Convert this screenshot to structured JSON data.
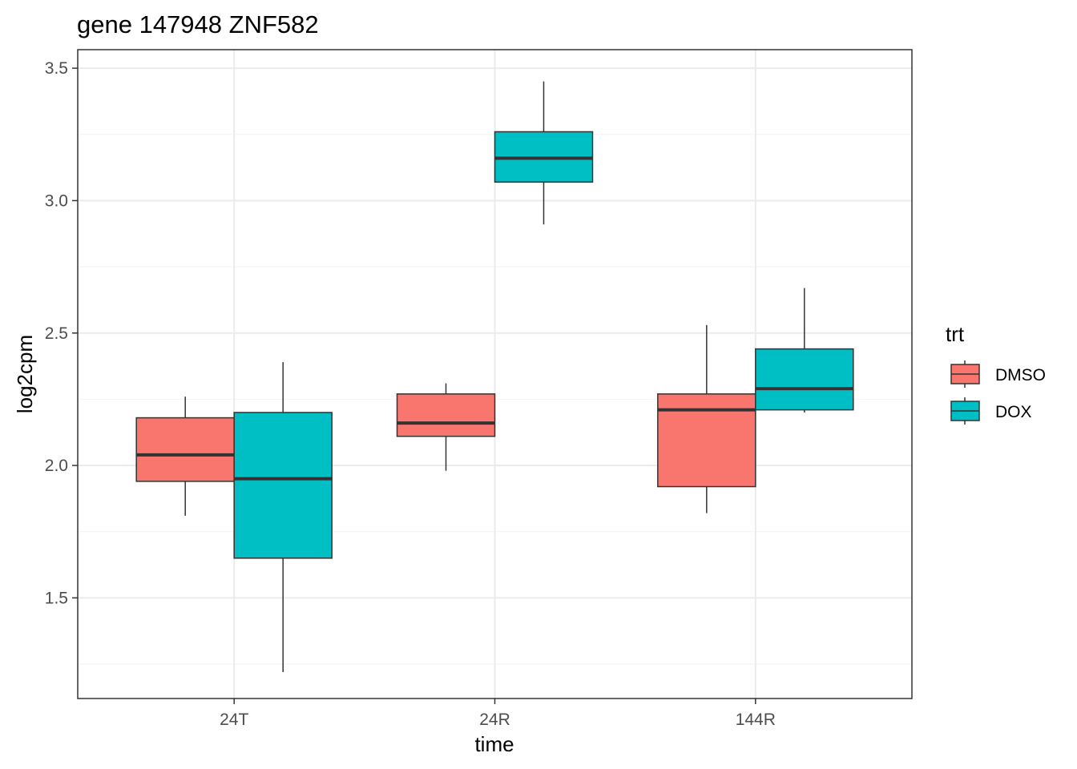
{
  "chart_data": {
    "type": "boxplot",
    "title": "gene 147948 ZNF582",
    "xlabel": "time",
    "ylabel": "log2cpm",
    "categories": [
      "24T",
      "24R",
      "144R"
    ],
    "ylim": [
      1.12,
      3.57
    ],
    "yticks": [
      1.5,
      2.0,
      2.5,
      3.0,
      3.5
    ],
    "yticks_labels": [
      "1.5",
      "2.0",
      "2.5",
      "3.0",
      "3.5"
    ],
    "grid": true,
    "legend": {
      "title": "trt",
      "position": "right",
      "entries": [
        "DMSO",
        "DOX"
      ]
    },
    "colors": {
      "DMSO": "#F8766D",
      "DOX": "#00BFC4"
    },
    "series": [
      {
        "name": "DMSO",
        "boxes": [
          {
            "category": "24T",
            "min": 1.81,
            "q1": 1.94,
            "median": 2.04,
            "q3": 2.18,
            "max": 2.26
          },
          {
            "category": "24R",
            "min": 1.98,
            "q1": 2.11,
            "median": 2.16,
            "q3": 2.27,
            "max": 2.31
          },
          {
            "category": "144R",
            "min": 1.82,
            "q1": 1.92,
            "median": 2.21,
            "q3": 2.27,
            "max": 2.53
          }
        ]
      },
      {
        "name": "DOX",
        "boxes": [
          {
            "category": "24T",
            "min": 1.22,
            "q1": 1.65,
            "median": 1.95,
            "q3": 2.2,
            "max": 2.39
          },
          {
            "category": "24R",
            "min": 2.91,
            "q1": 3.07,
            "median": 3.16,
            "q3": 3.26,
            "max": 3.45
          },
          {
            "category": "144R",
            "min": 2.2,
            "q1": 2.21,
            "median": 2.29,
            "q3": 2.44,
            "max": 2.67
          }
        ]
      }
    ]
  }
}
